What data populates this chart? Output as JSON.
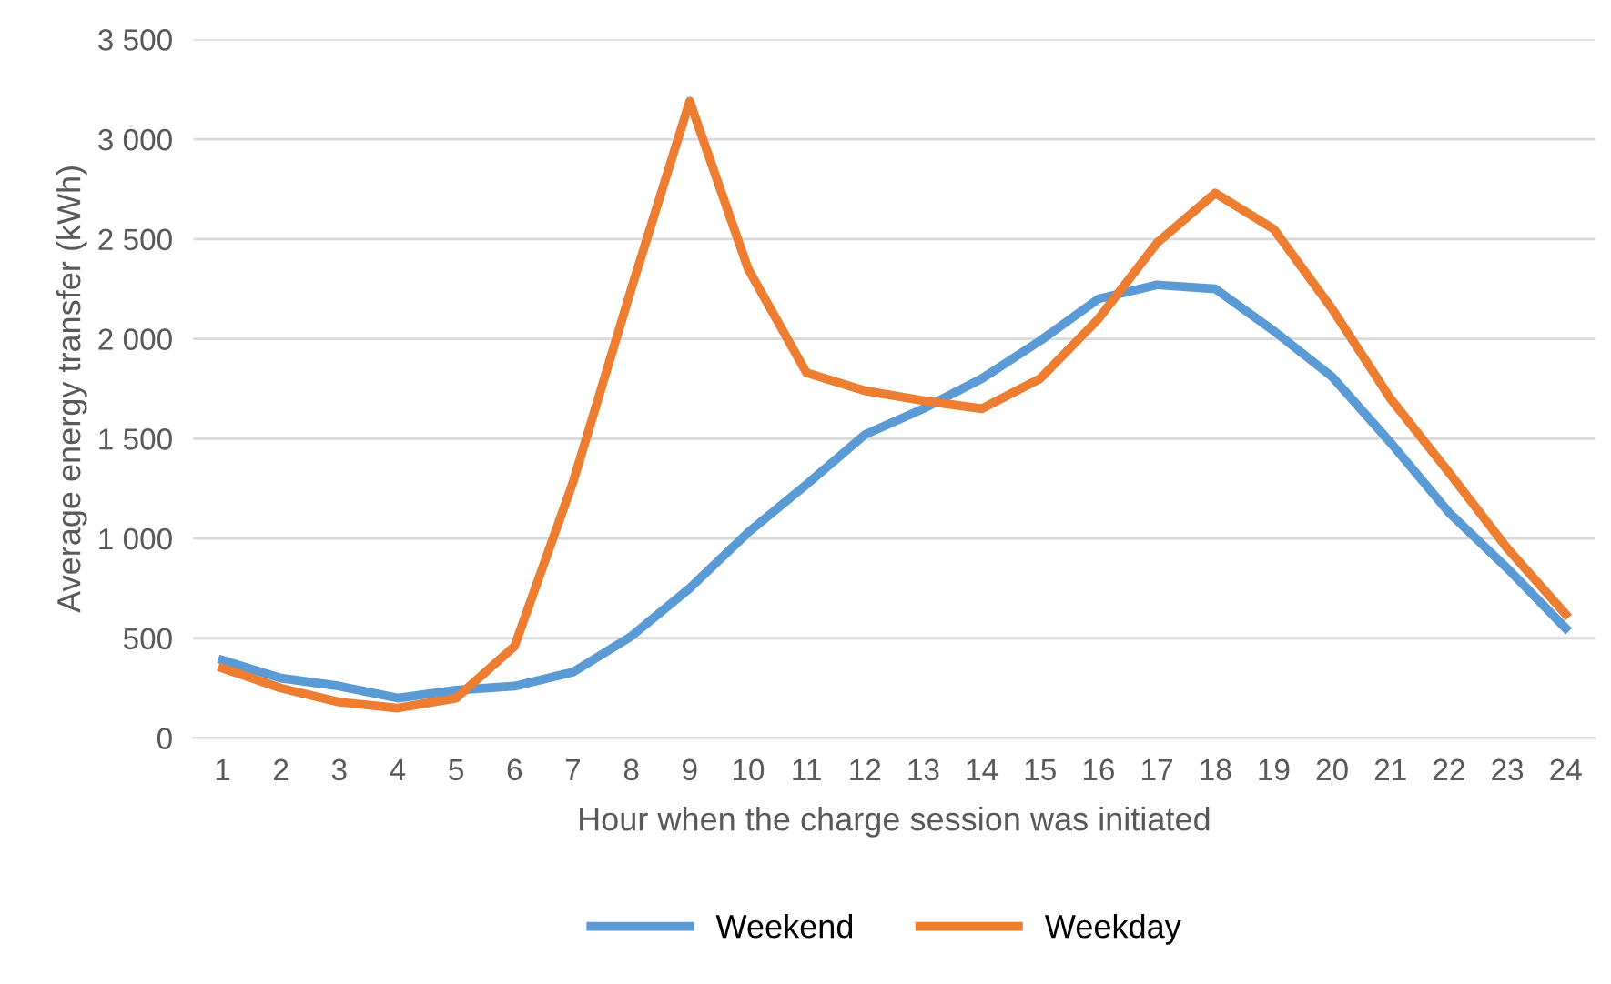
{
  "chart_data": {
    "type": "line",
    "xlabel": "Hour when the charge session was initiated",
    "ylabel": "Average energy transfer (kWh)",
    "categories": [
      "1",
      "2",
      "3",
      "4",
      "5",
      "6",
      "7",
      "8",
      "9",
      "10",
      "11",
      "12",
      "13",
      "14",
      "15",
      "16",
      "17",
      "18",
      "19",
      "20",
      "21",
      "22",
      "23",
      "24"
    ],
    "series": [
      {
        "name": "Weekend",
        "color": "#5b9bd5",
        "values": [
          390,
          300,
          260,
          200,
          240,
          260,
          330,
          510,
          750,
          1030,
          1270,
          1520,
          1650,
          1800,
          1990,
          2200,
          2270,
          2250,
          2040,
          1810,
          1480,
          1130,
          850,
          550
        ]
      },
      {
        "name": "Weekday",
        "color": "#ed7d31",
        "values": [
          350,
          250,
          180,
          150,
          200,
          460,
          1280,
          2250,
          3190,
          2350,
          1830,
          1740,
          1690,
          1650,
          1800,
          2100,
          2480,
          2730,
          2550,
          2150,
          1700,
          1330,
          950,
          620
        ]
      }
    ],
    "ylim": [
      0,
      3500
    ],
    "yticks": [
      0,
      500,
      {
        "value": 1000,
        "label": "1 000"
      },
      {
        "value": 1500,
        "label": "1 500"
      },
      {
        "value": 2000,
        "label": "2 000"
      },
      {
        "value": 2500,
        "label": "2 500"
      },
      {
        "value": 3000,
        "label": "3 000"
      },
      {
        "value": 3500,
        "label": "3 500"
      }
    ],
    "grid": "y",
    "legend": "bottom",
    "marker": "none",
    "line_style": "solid"
  }
}
